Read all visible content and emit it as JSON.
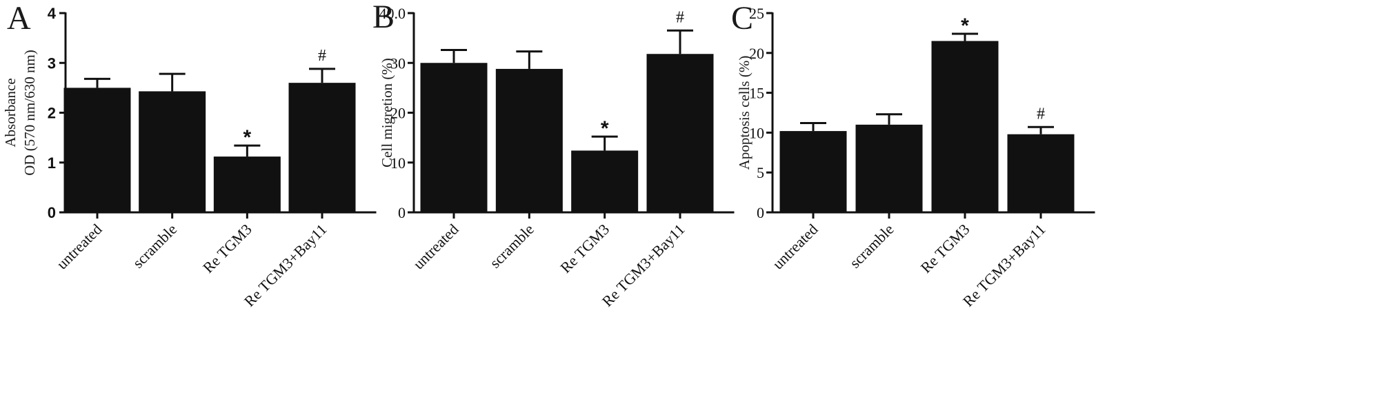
{
  "chart_data": [
    {
      "panel": "A",
      "type": "bar",
      "categories": [
        "untreated",
        "scramble",
        "Re TGM3",
        "Re TGM3+Bay11"
      ],
      "values": [
        2.5,
        2.43,
        1.12,
        2.6
      ],
      "error": [
        0.18,
        0.35,
        0.22,
        0.28
      ],
      "ylabel_lines": [
        "Absorbance",
        "OD (570 nm/630 nm)"
      ],
      "ylim": [
        0,
        4
      ],
      "yticks": [
        "0",
        "1",
        "2",
        "3",
        "4"
      ],
      "annotations": [
        "",
        "",
        "*",
        "#"
      ],
      "bar_color": "#111111"
    },
    {
      "panel": "B",
      "type": "bar",
      "categories": [
        "untreated",
        "scramble",
        "Re TGM3",
        "Re TGM3+Bay11"
      ],
      "values": [
        30.0,
        28.8,
        12.4,
        31.8
      ],
      "error": [
        2.6,
        3.5,
        2.8,
        4.7
      ],
      "ylabel_lines": [
        "Cell migretion (%)"
      ],
      "ylim": [
        0,
        40
      ],
      "yticks": [
        "0",
        "10",
        "20",
        "30",
        "40.0"
      ],
      "annotations": [
        "",
        "",
        "*",
        "#"
      ],
      "bar_color": "#111111"
    },
    {
      "panel": "C",
      "type": "bar",
      "categories": [
        "untreated",
        "scramble",
        "Re TGM3",
        "Re TGM3+Bay11"
      ],
      "values": [
        10.2,
        11.0,
        21.5,
        9.8
      ],
      "error": [
        1.0,
        1.3,
        0.9,
        0.9
      ],
      "ylabel_lines": [
        "Apoptosis cells (%)"
      ],
      "ylim": [
        0,
        25
      ],
      "yticks": [
        "0",
        "5",
        "10",
        "15",
        "20",
        "25"
      ],
      "annotations": [
        "",
        "",
        "*",
        "#"
      ],
      "bar_color": "#111111"
    }
  ]
}
